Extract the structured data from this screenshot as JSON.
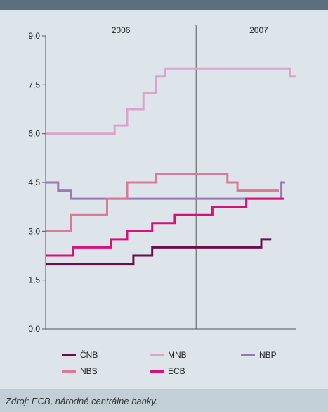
{
  "chart_data": {
    "type": "line",
    "step": true,
    "x_unit": "month",
    "x_range": [
      0,
      20
    ],
    "year_labels": [
      {
        "label": "2006",
        "x": 6
      },
      {
        "label": "2007",
        "x": 17
      }
    ],
    "year_divider": 12,
    "ylim": [
      0,
      9
    ],
    "yticks": [
      "0,0",
      "1,5",
      "3,0",
      "4,5",
      "6,0",
      "7,5",
      "9,0"
    ],
    "ytick_values": [
      0,
      1.5,
      3.0,
      4.5,
      6.0,
      7.5,
      9.0
    ],
    "grid": false,
    "legend_position": "bottom",
    "series": [
      {
        "name": "ČNB",
        "color": "#6b0f4a",
        "points": [
          [
            0,
            2.0
          ],
          [
            7,
            2.0
          ],
          [
            7,
            2.25
          ],
          [
            8.5,
            2.25
          ],
          [
            8.5,
            2.5
          ],
          [
            17.2,
            2.5
          ],
          [
            17.2,
            2.75
          ],
          [
            18,
            2.75
          ]
        ]
      },
      {
        "name": "MNB",
        "color": "#dba3d0",
        "points": [
          [
            0,
            6.0
          ],
          [
            5.5,
            6.0
          ],
          [
            5.5,
            6.25
          ],
          [
            6.5,
            6.25
          ],
          [
            6.5,
            6.75
          ],
          [
            7.8,
            6.75
          ],
          [
            7.8,
            7.25
          ],
          [
            8.8,
            7.25
          ],
          [
            8.8,
            7.75
          ],
          [
            9.5,
            7.75
          ],
          [
            9.5,
            8.0
          ],
          [
            19.5,
            8.0
          ],
          [
            19.5,
            7.75
          ],
          [
            20,
            7.75
          ]
        ]
      },
      {
        "name": "NBP",
        "color": "#9b78b8",
        "points": [
          [
            0,
            4.5
          ],
          [
            1.0,
            4.5
          ],
          [
            1.0,
            4.25
          ],
          [
            2.0,
            4.25
          ],
          [
            2.0,
            4.0
          ],
          [
            18.8,
            4.0
          ],
          [
            18.8,
            4.5
          ],
          [
            19.1,
            4.5
          ]
        ]
      },
      {
        "name": "NBS",
        "color": "#d87a98",
        "points": [
          [
            0,
            3.0
          ],
          [
            2.0,
            3.0
          ],
          [
            2.0,
            3.5
          ],
          [
            4.9,
            3.5
          ],
          [
            4.9,
            4.0
          ],
          [
            6.5,
            4.0
          ],
          [
            6.5,
            4.5
          ],
          [
            8.8,
            4.5
          ],
          [
            8.8,
            4.75
          ],
          [
            14.5,
            4.75
          ],
          [
            14.5,
            4.5
          ],
          [
            15.3,
            4.5
          ],
          [
            15.3,
            4.25
          ],
          [
            18.6,
            4.25
          ]
        ]
      },
      {
        "name": "ECB",
        "color": "#d6127a",
        "points": [
          [
            0,
            2.25
          ],
          [
            2.2,
            2.25
          ],
          [
            2.2,
            2.5
          ],
          [
            5.2,
            2.5
          ],
          [
            5.2,
            2.75
          ],
          [
            6.5,
            2.75
          ],
          [
            6.5,
            3.0
          ],
          [
            8.5,
            3.0
          ],
          [
            8.5,
            3.25
          ],
          [
            10.3,
            3.25
          ],
          [
            10.3,
            3.5
          ],
          [
            13.3,
            3.5
          ],
          [
            13.3,
            3.75
          ],
          [
            16.0,
            3.75
          ],
          [
            16.0,
            4.0
          ],
          [
            19,
            4.0
          ]
        ]
      }
    ]
  },
  "source": "Zdroj: ECB, národné centrálne banky."
}
